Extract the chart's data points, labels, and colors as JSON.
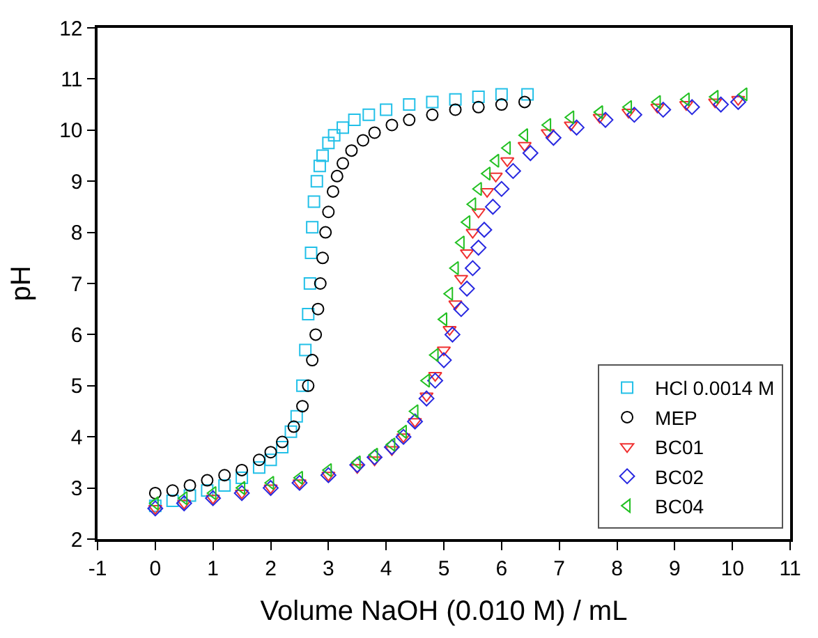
{
  "chart_data": {
    "type": "scatter",
    "xlabel": "Volume NaOH (0.010 M) / mL",
    "ylabel": "pH",
    "xlim": [
      -1,
      11
    ],
    "xticks": [
      -1,
      0,
      1,
      2,
      3,
      4,
      5,
      6,
      7,
      8,
      9,
      10,
      11
    ],
    "ylim": [
      2,
      12
    ],
    "yticks": [
      2,
      3,
      4,
      5,
      6,
      7,
      8,
      9,
      10,
      11,
      12
    ],
    "legend": "bottom right",
    "series": [
      {
        "name": "HCl 0.0014 M",
        "color": "#22c0e8",
        "marker": "square",
        "x": [
          0,
          0.3,
          0.6,
          0.9,
          1.2,
          1.5,
          1.8,
          2.0,
          2.2,
          2.35,
          2.45,
          2.55,
          2.6,
          2.65,
          2.68,
          2.7,
          2.72,
          2.75,
          2.8,
          2.85,
          2.9,
          3.0,
          3.1,
          3.25,
          3.45,
          3.7,
          4.0,
          4.4,
          4.8,
          5.2,
          5.6,
          6.0,
          6.45
        ],
        "values": [
          2.65,
          2.75,
          2.85,
          2.95,
          3.05,
          3.2,
          3.4,
          3.55,
          3.8,
          4.1,
          4.4,
          5.0,
          5.7,
          6.4,
          7.0,
          7.6,
          8.1,
          8.6,
          9.0,
          9.3,
          9.5,
          9.75,
          9.9,
          10.05,
          10.2,
          10.3,
          10.4,
          10.5,
          10.55,
          10.6,
          10.65,
          10.7,
          10.7
        ]
      },
      {
        "name": "MEP",
        "color": "#000000",
        "marker": "circle",
        "x": [
          0,
          0.3,
          0.6,
          0.9,
          1.2,
          1.5,
          1.8,
          2.0,
          2.2,
          2.4,
          2.55,
          2.65,
          2.72,
          2.78,
          2.82,
          2.86,
          2.9,
          2.95,
          3.0,
          3.08,
          3.15,
          3.25,
          3.4,
          3.6,
          3.8,
          4.1,
          4.4,
          4.8,
          5.2,
          5.6,
          6.0,
          6.4
        ],
        "values": [
          2.9,
          2.95,
          3.05,
          3.15,
          3.25,
          3.35,
          3.55,
          3.7,
          3.9,
          4.2,
          4.6,
          5.0,
          5.5,
          6.0,
          6.5,
          7.0,
          7.5,
          8.0,
          8.4,
          8.8,
          9.1,
          9.35,
          9.6,
          9.8,
          9.95,
          10.1,
          10.2,
          10.3,
          10.4,
          10.45,
          10.5,
          10.55
        ]
      },
      {
        "name": "BC01",
        "color": "#f03030",
        "marker": "triangle-down",
        "x": [
          0,
          0.5,
          1.0,
          1.5,
          2.0,
          2.5,
          3.0,
          3.5,
          3.8,
          4.1,
          4.3,
          4.5,
          4.7,
          4.85,
          5.0,
          5.1,
          5.2,
          5.3,
          5.4,
          5.5,
          5.6,
          5.75,
          5.9,
          6.1,
          6.4,
          6.8,
          7.2,
          7.7,
          8.2,
          8.7,
          9.2,
          9.7,
          10.1
        ],
        "values": [
          2.6,
          2.7,
          2.8,
          2.9,
          3.0,
          3.1,
          3.25,
          3.4,
          3.55,
          3.75,
          4.0,
          4.3,
          4.8,
          5.2,
          5.7,
          6.1,
          6.6,
          7.1,
          7.6,
          8.0,
          8.4,
          8.8,
          9.1,
          9.4,
          9.7,
          9.95,
          10.1,
          10.25,
          10.35,
          10.45,
          10.5,
          10.55,
          10.6
        ]
      },
      {
        "name": "BC02",
        "color": "#2828e0",
        "marker": "diamond",
        "x": [
          0,
          0.5,
          1.0,
          1.5,
          2.0,
          2.5,
          3.0,
          3.5,
          3.8,
          4.1,
          4.3,
          4.5,
          4.7,
          4.85,
          5.0,
          5.15,
          5.3,
          5.4,
          5.5,
          5.6,
          5.7,
          5.85,
          6.0,
          6.2,
          6.5,
          6.9,
          7.3,
          7.8,
          8.3,
          8.8,
          9.3,
          9.8,
          10.1
        ],
        "values": [
          2.6,
          2.7,
          2.8,
          2.9,
          3.0,
          3.1,
          3.25,
          3.45,
          3.6,
          3.8,
          4.0,
          4.3,
          4.75,
          5.1,
          5.5,
          6.0,
          6.5,
          6.9,
          7.3,
          7.7,
          8.05,
          8.5,
          8.85,
          9.2,
          9.55,
          9.85,
          10.05,
          10.2,
          10.3,
          10.4,
          10.45,
          10.5,
          10.55
        ]
      },
      {
        "name": "BC04",
        "color": "#22c022",
        "marker": "triangle-left",
        "x": [
          0,
          0.5,
          1.0,
          1.5,
          2.0,
          2.5,
          3.0,
          3.5,
          3.8,
          4.1,
          4.3,
          4.5,
          4.7,
          4.85,
          5.0,
          5.1,
          5.2,
          5.3,
          5.4,
          5.5,
          5.6,
          5.75,
          5.9,
          6.1,
          6.4,
          6.8,
          7.2,
          7.7,
          8.2,
          8.7,
          9.2,
          9.7,
          10.2
        ],
        "values": [
          2.7,
          2.8,
          2.9,
          3.0,
          3.1,
          3.2,
          3.35,
          3.5,
          3.65,
          3.85,
          4.1,
          4.5,
          5.1,
          5.6,
          6.3,
          6.8,
          7.3,
          7.8,
          8.2,
          8.55,
          8.85,
          9.15,
          9.4,
          9.65,
          9.9,
          10.1,
          10.25,
          10.35,
          10.45,
          10.55,
          10.6,
          10.65,
          10.7
        ]
      }
    ]
  }
}
